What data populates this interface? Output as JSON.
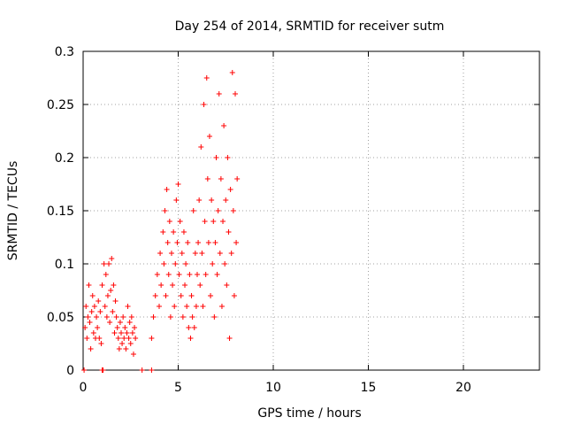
{
  "chart_data": {
    "type": "scatter",
    "title": "Day 254 of 2014, SRMTID for receiver sutm",
    "xlabel": "GPS time / hours",
    "ylabel": "SRMTID / TECUs",
    "xlim": [
      0,
      24
    ],
    "ylim": [
      0,
      0.3
    ],
    "xticks": [
      0,
      5,
      10,
      15,
      20
    ],
    "yticks": [
      0,
      0.05,
      0.1,
      0.15,
      0.2,
      0.25,
      0.3
    ],
    "xtick_labels": [
      "0",
      "5",
      "10",
      "15",
      "20"
    ],
    "ytick_labels": [
      "0",
      "0.05",
      "0.1",
      "0.15",
      "0.2",
      "0.25",
      "0.3"
    ],
    "grid": true,
    "marker": "+",
    "color": "#ff0000",
    "series": [
      {
        "name": "SRMTID",
        "points": [
          [
            0.05,
            0.0
          ],
          [
            0.1,
            0.04
          ],
          [
            0.15,
            0.06
          ],
          [
            0.2,
            0.03
          ],
          [
            0.25,
            0.05
          ],
          [
            0.3,
            0.08
          ],
          [
            0.35,
            0.045
          ],
          [
            0.4,
            0.02
          ],
          [
            0.45,
            0.055
          ],
          [
            0.5,
            0.07
          ],
          [
            0.55,
            0.035
          ],
          [
            0.6,
            0.06
          ],
          [
            0.65,
            0.03
          ],
          [
            0.7,
            0.05
          ],
          [
            0.75,
            0.04
          ],
          [
            0.8,
            0.065
          ],
          [
            0.85,
            0.03
          ],
          [
            0.9,
            0.055
          ],
          [
            0.95,
            0.025
          ],
          [
            1.0,
            0.0
          ],
          [
            1.05,
            0.0
          ],
          [
            1.0,
            0.08
          ],
          [
            1.1,
            0.1
          ],
          [
            1.15,
            0.06
          ],
          [
            1.2,
            0.09
          ],
          [
            1.25,
            0.05
          ],
          [
            1.3,
            0.07
          ],
          [
            1.35,
            0.1
          ],
          [
            1.4,
            0.045
          ],
          [
            1.45,
            0.075
          ],
          [
            1.5,
            0.105
          ],
          [
            1.55,
            0.055
          ],
          [
            1.6,
            0.08
          ],
          [
            1.65,
            0.035
          ],
          [
            1.7,
            0.065
          ],
          [
            1.75,
            0.05
          ],
          [
            1.8,
            0.04
          ],
          [
            1.85,
            0.03
          ],
          [
            1.9,
            0.02
          ],
          [
            1.95,
            0.045
          ],
          [
            2.0,
            0.035
          ],
          [
            2.05,
            0.025
          ],
          [
            2.1,
            0.05
          ],
          [
            2.15,
            0.03
          ],
          [
            2.2,
            0.04
          ],
          [
            2.25,
            0.02
          ],
          [
            2.3,
            0.035
          ],
          [
            2.35,
            0.06
          ],
          [
            2.4,
            0.03
          ],
          [
            2.45,
            0.045
          ],
          [
            2.5,
            0.025
          ],
          [
            2.55,
            0.05
          ],
          [
            2.6,
            0.035
          ],
          [
            2.65,
            0.015
          ],
          [
            2.7,
            0.04
          ],
          [
            2.75,
            0.03
          ],
          [
            3.1,
            0.0
          ],
          [
            3.6,
            0.0
          ],
          [
            3.6,
            0.03
          ],
          [
            3.7,
            0.05
          ],
          [
            3.8,
            0.07
          ],
          [
            3.9,
            0.09
          ],
          [
            4.0,
            0.06
          ],
          [
            4.05,
            0.11
          ],
          [
            4.1,
            0.08
          ],
          [
            4.2,
            0.13
          ],
          [
            4.25,
            0.1
          ],
          [
            4.3,
            0.15
          ],
          [
            4.35,
            0.07
          ],
          [
            4.4,
            0.17
          ],
          [
            4.45,
            0.12
          ],
          [
            4.5,
            0.09
          ],
          [
            4.55,
            0.14
          ],
          [
            4.6,
            0.05
          ],
          [
            4.65,
            0.11
          ],
          [
            4.7,
            0.08
          ],
          [
            4.75,
            0.13
          ],
          [
            4.8,
            0.06
          ],
          [
            4.85,
            0.1
          ],
          [
            4.9,
            0.16
          ],
          [
            4.95,
            0.12
          ],
          [
            5.0,
            0.175
          ],
          [
            5.05,
            0.09
          ],
          [
            5.1,
            0.14
          ],
          [
            5.15,
            0.07
          ],
          [
            5.2,
            0.11
          ],
          [
            5.25,
            0.05
          ],
          [
            5.3,
            0.13
          ],
          [
            5.35,
            0.08
          ],
          [
            5.4,
            0.1
          ],
          [
            5.45,
            0.06
          ],
          [
            5.5,
            0.12
          ],
          [
            5.55,
            0.04
          ],
          [
            5.6,
            0.09
          ],
          [
            5.65,
            0.03
          ],
          [
            5.7,
            0.07
          ],
          [
            5.75,
            0.05
          ],
          [
            5.8,
            0.15
          ],
          [
            5.85,
            0.04
          ],
          [
            5.9,
            0.11
          ],
          [
            5.95,
            0.06
          ],
          [
            6.0,
            0.09
          ],
          [
            6.05,
            0.12
          ],
          [
            6.1,
            0.16
          ],
          [
            6.15,
            0.08
          ],
          [
            6.2,
            0.21
          ],
          [
            6.25,
            0.11
          ],
          [
            6.3,
            0.06
          ],
          [
            6.35,
            0.25
          ],
          [
            6.4,
            0.14
          ],
          [
            6.45,
            0.09
          ],
          [
            6.5,
            0.275
          ],
          [
            6.55,
            0.18
          ],
          [
            6.6,
            0.12
          ],
          [
            6.65,
            0.22
          ],
          [
            6.7,
            0.07
          ],
          [
            6.75,
            0.16
          ],
          [
            6.8,
            0.1
          ],
          [
            6.85,
            0.14
          ],
          [
            6.9,
            0.05
          ],
          [
            6.95,
            0.12
          ],
          [
            7.0,
            0.2
          ],
          [
            7.05,
            0.09
          ],
          [
            7.1,
            0.15
          ],
          [
            7.15,
            0.26
          ],
          [
            7.2,
            0.11
          ],
          [
            7.25,
            0.18
          ],
          [
            7.3,
            0.06
          ],
          [
            7.35,
            0.14
          ],
          [
            7.4,
            0.23
          ],
          [
            7.45,
            0.1
          ],
          [
            7.5,
            0.16
          ],
          [
            7.55,
            0.08
          ],
          [
            7.6,
            0.2
          ],
          [
            7.65,
            0.13
          ],
          [
            7.7,
            0.03
          ],
          [
            7.75,
            0.17
          ],
          [
            7.8,
            0.11
          ],
          [
            7.85,
            0.28
          ],
          [
            7.9,
            0.15
          ],
          [
            7.95,
            0.07
          ],
          [
            8.0,
            0.26
          ],
          [
            8.05,
            0.12
          ],
          [
            8.1,
            0.18
          ]
        ]
      }
    ]
  }
}
